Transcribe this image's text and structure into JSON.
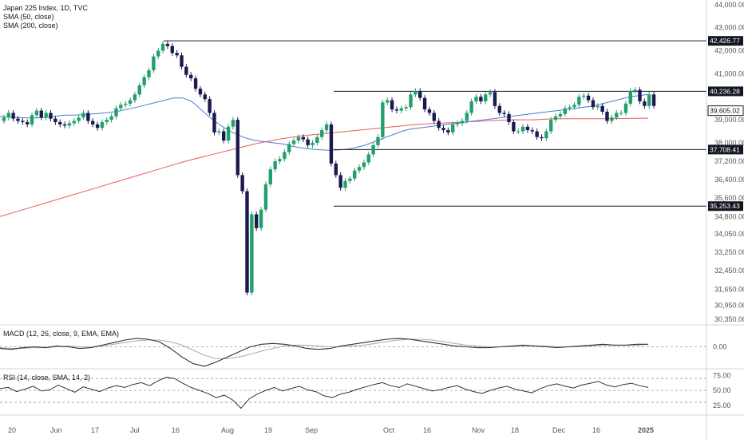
{
  "legend": {
    "title": "Japan 225 Index, 1D, TVC",
    "sma50": "SMA (50, close)",
    "sma200": "SMA (200, close)",
    "macd": "MACD (12, 26, close, 9, EMA, EMA)",
    "rsi": "RSI (14, close, SMA, 14, 2)"
  },
  "colors": {
    "up": "#22a06b",
    "down": "#1b1a4e",
    "sma50": "#4a7cd6",
    "sma200": "#e85d5d",
    "macd": "#333333",
    "signal": "#b0b0b0",
    "label_bg": "#131722"
  },
  "chart_data": {
    "type": "candlestick",
    "price_axis": {
      "ticks": [
        "44,000.00",
        "43,000.00",
        "42,000.00",
        "41,000.00",
        "39,000.00",
        "38,000.00",
        "37,200.00",
        "36,400.00",
        "35,600.00",
        "34,800.00",
        "34,050.00",
        "33,250.00",
        "32,450.00",
        "31,650.00",
        "30,950.00",
        "30,350.00"
      ],
      "ylim": [
        30100,
        44200
      ]
    },
    "level_labels": [
      "42,426.77",
      "40,236.28",
      "39,605.02",
      "37,708.41",
      "35,253.43"
    ],
    "levels": [
      42426.77,
      40236.28,
      37708.41,
      35253.43
    ],
    "last_price": 39605.02,
    "x_labels": [
      "20",
      "Jun",
      "17",
      "Jul",
      "16",
      "Aug",
      "19",
      "Sep",
      "Oct",
      "16",
      "Nov",
      "18",
      "Dec",
      "16",
      "2025"
    ],
    "closes": [
      39100,
      39300,
      39050,
      38950,
      38900,
      38800,
      39200,
      39400,
      39100,
      39300,
      39050,
      38900,
      38800,
      38750,
      38850,
      38950,
      39100,
      39300,
      38950,
      38800,
      38650,
      38900,
      39000,
      39150,
      39500,
      39650,
      39700,
      39850,
      40100,
      40500,
      40850,
      41150,
      41750,
      42000,
      42300,
      42200,
      41900,
      41800,
      41300,
      40950,
      40800,
      40350,
      40100,
      39900,
      39300,
      38450,
      38500,
      38100,
      38700,
      39000,
      36600,
      35900,
      31500,
      34900,
      34300,
      35100,
      36200,
      36850,
      37200,
      37300,
      37600,
      37950,
      38100,
      38250,
      38150,
      37900,
      38000,
      38250,
      38550,
      38800,
      37100,
      36600,
      36050,
      36350,
      36450,
      36800,
      36950,
      37150,
      37500,
      37900,
      38250,
      39750,
      39850,
      39450,
      39400,
      39500,
      39550,
      40100,
      40250,
      39950,
      39450,
      39300,
      38950,
      38650,
      38550,
      38450,
      38800,
      38850,
      38950,
      39300,
      39800,
      40000,
      39800,
      40100,
      40200,
      39600,
      39300,
      39250,
      38900,
      38500,
      38500,
      38700,
      38550,
      38500,
      38250,
      38200,
      38500,
      39000,
      39150,
      39250,
      39500,
      39550,
      39650,
      40000,
      40050,
      39850,
      39550,
      39600,
      39350,
      38950,
      39100,
      39300,
      39300,
      39700,
      40250,
      40300,
      39800,
      39600,
      40100,
      39605.02
    ],
    "sma50": [
      39150,
      39120,
      39100,
      39080,
      39080,
      39100,
      39150,
      39200,
      39200,
      39220,
      39250,
      39280,
      39320,
      39380,
      39460,
      39550,
      39650,
      39750,
      39850,
      39950,
      39950,
      39800,
      39450,
      39100,
      38800,
      38550,
      38350,
      38200,
      38100,
      38050,
      38000,
      37950,
      37850,
      37780,
      37730,
      37700,
      37680,
      37690,
      37720,
      37800,
      37900,
      38050,
      38200,
      38350,
      38500,
      38600,
      38650,
      38700,
      38750,
      38800,
      38850,
      38900,
      38950,
      39000,
      39050,
      39100,
      39150,
      39200,
      39250,
      39300,
      39350,
      39400,
      39450,
      39500,
      39550,
      39600,
      39700,
      39800,
      39900,
      40000,
      40050,
      40100
    ],
    "sma200": [
      34800,
      35100,
      35400,
      35700,
      36000,
      36300,
      36600,
      36900,
      37200,
      37450,
      37700,
      37950,
      38150,
      38300,
      38400,
      38500,
      38600,
      38700,
      38800,
      38850,
      38900,
      38950,
      39000,
      39000,
      39050,
      39050,
      39050,
      39060,
      39070
    ],
    "macd": [
      -0.2,
      -0.3,
      -0.1,
      0.0,
      -0.1,
      0.1,
      0.0,
      -0.2,
      -0.1,
      0.2,
      0.5,
      0.8,
      1.0,
      0.9,
      0.6,
      -0.2,
      -1.2,
      -2.0,
      -2.3,
      -1.8,
      -1.2,
      -0.6,
      0.0,
      0.3,
      0.4,
      0.3,
      0.1,
      -0.2,
      -0.3,
      -0.2,
      0.1,
      0.3,
      0.5,
      0.7,
      0.9,
      1.0,
      0.9,
      0.7,
      0.5,
      0.3,
      0.1,
      0.0,
      -0.1,
      -0.1,
      0.0,
      0.1,
      0.2,
      0.1,
      0.0,
      -0.1,
      0.0,
      0.1,
      0.2,
      0.3,
      0.2,
      0.2,
      0.3,
      0.3
    ],
    "signal": [
      -0.1,
      -0.2,
      -0.2,
      -0.1,
      -0.1,
      0.0,
      0.1,
      0.0,
      0.0,
      0.1,
      0.3,
      0.5,
      0.7,
      0.8,
      0.8,
      0.6,
      0.2,
      -0.4,
      -1.0,
      -1.4,
      -1.4,
      -1.2,
      -0.9,
      -0.5,
      -0.2,
      0.1,
      0.2,
      0.2,
      0.1,
      0.0,
      0.0,
      0.1,
      0.2,
      0.4,
      0.6,
      0.8,
      0.9,
      0.9,
      0.8,
      0.6,
      0.4,
      0.2,
      0.1,
      0.0,
      0.0,
      0.0,
      0.1,
      0.1,
      0.1,
      0.0,
      0.0,
      0.0,
      0.1,
      0.2,
      0.2,
      0.2,
      0.2,
      0.3
    ],
    "macd_ticks": [
      "0.00"
    ],
    "rsi": [
      53,
      55,
      48,
      52,
      57,
      49,
      51,
      59,
      53,
      47,
      56,
      52,
      48,
      54,
      58,
      55,
      60,
      63,
      58,
      66,
      72,
      70,
      62,
      55,
      50,
      45,
      38,
      42,
      34,
      20,
      36,
      44,
      50,
      55,
      49,
      53,
      57,
      51,
      48,
      41,
      38,
      44,
      47,
      52,
      56,
      60,
      63,
      58,
      55,
      61,
      57,
      53,
      49,
      51,
      55,
      58,
      52,
      48,
      45,
      50,
      54,
      57,
      52,
      49,
      46,
      53,
      58,
      61,
      57,
      54,
      59,
      62,
      65,
      59,
      56,
      60,
      62,
      58,
      55
    ],
    "rsi_ticks": [
      "75.00",
      "50.00",
      "25.00"
    ]
  }
}
